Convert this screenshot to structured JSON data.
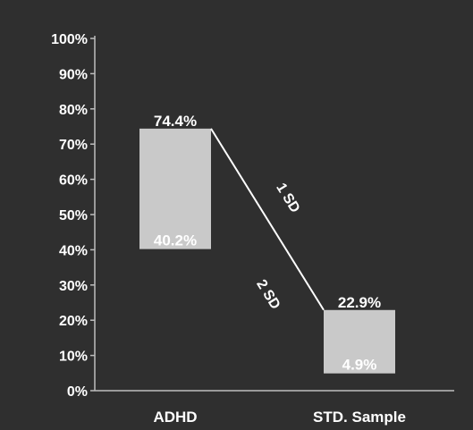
{
  "chart_data": {
    "type": "bar",
    "title": "",
    "xlabel": "",
    "ylabel": "",
    "ylim": [
      0,
      100
    ],
    "y_ticks": [
      "0%",
      "10%",
      "20%",
      "30%",
      "40%",
      "50%",
      "60%",
      "70%",
      "80%",
      "90%",
      "100%"
    ],
    "categories": [
      "ADHD",
      "STD. Sample"
    ],
    "ranges": [
      {
        "low": 40.2,
        "high": 74.4,
        "low_label": "40.2%",
        "high_label": "74.4%"
      },
      {
        "low": 4.9,
        "high": 22.9,
        "low_label": "4.9%",
        "high_label": "22.9%"
      }
    ],
    "connector": {
      "from": 74.4,
      "to": 22.9
    },
    "annotations": [
      "1 SD",
      "2 SD"
    ],
    "grid": false,
    "colors": {
      "background": "#2f2f2f",
      "bar": "#c9c9c9",
      "text": "#ffffff",
      "axis": "#bdbdbd"
    }
  }
}
